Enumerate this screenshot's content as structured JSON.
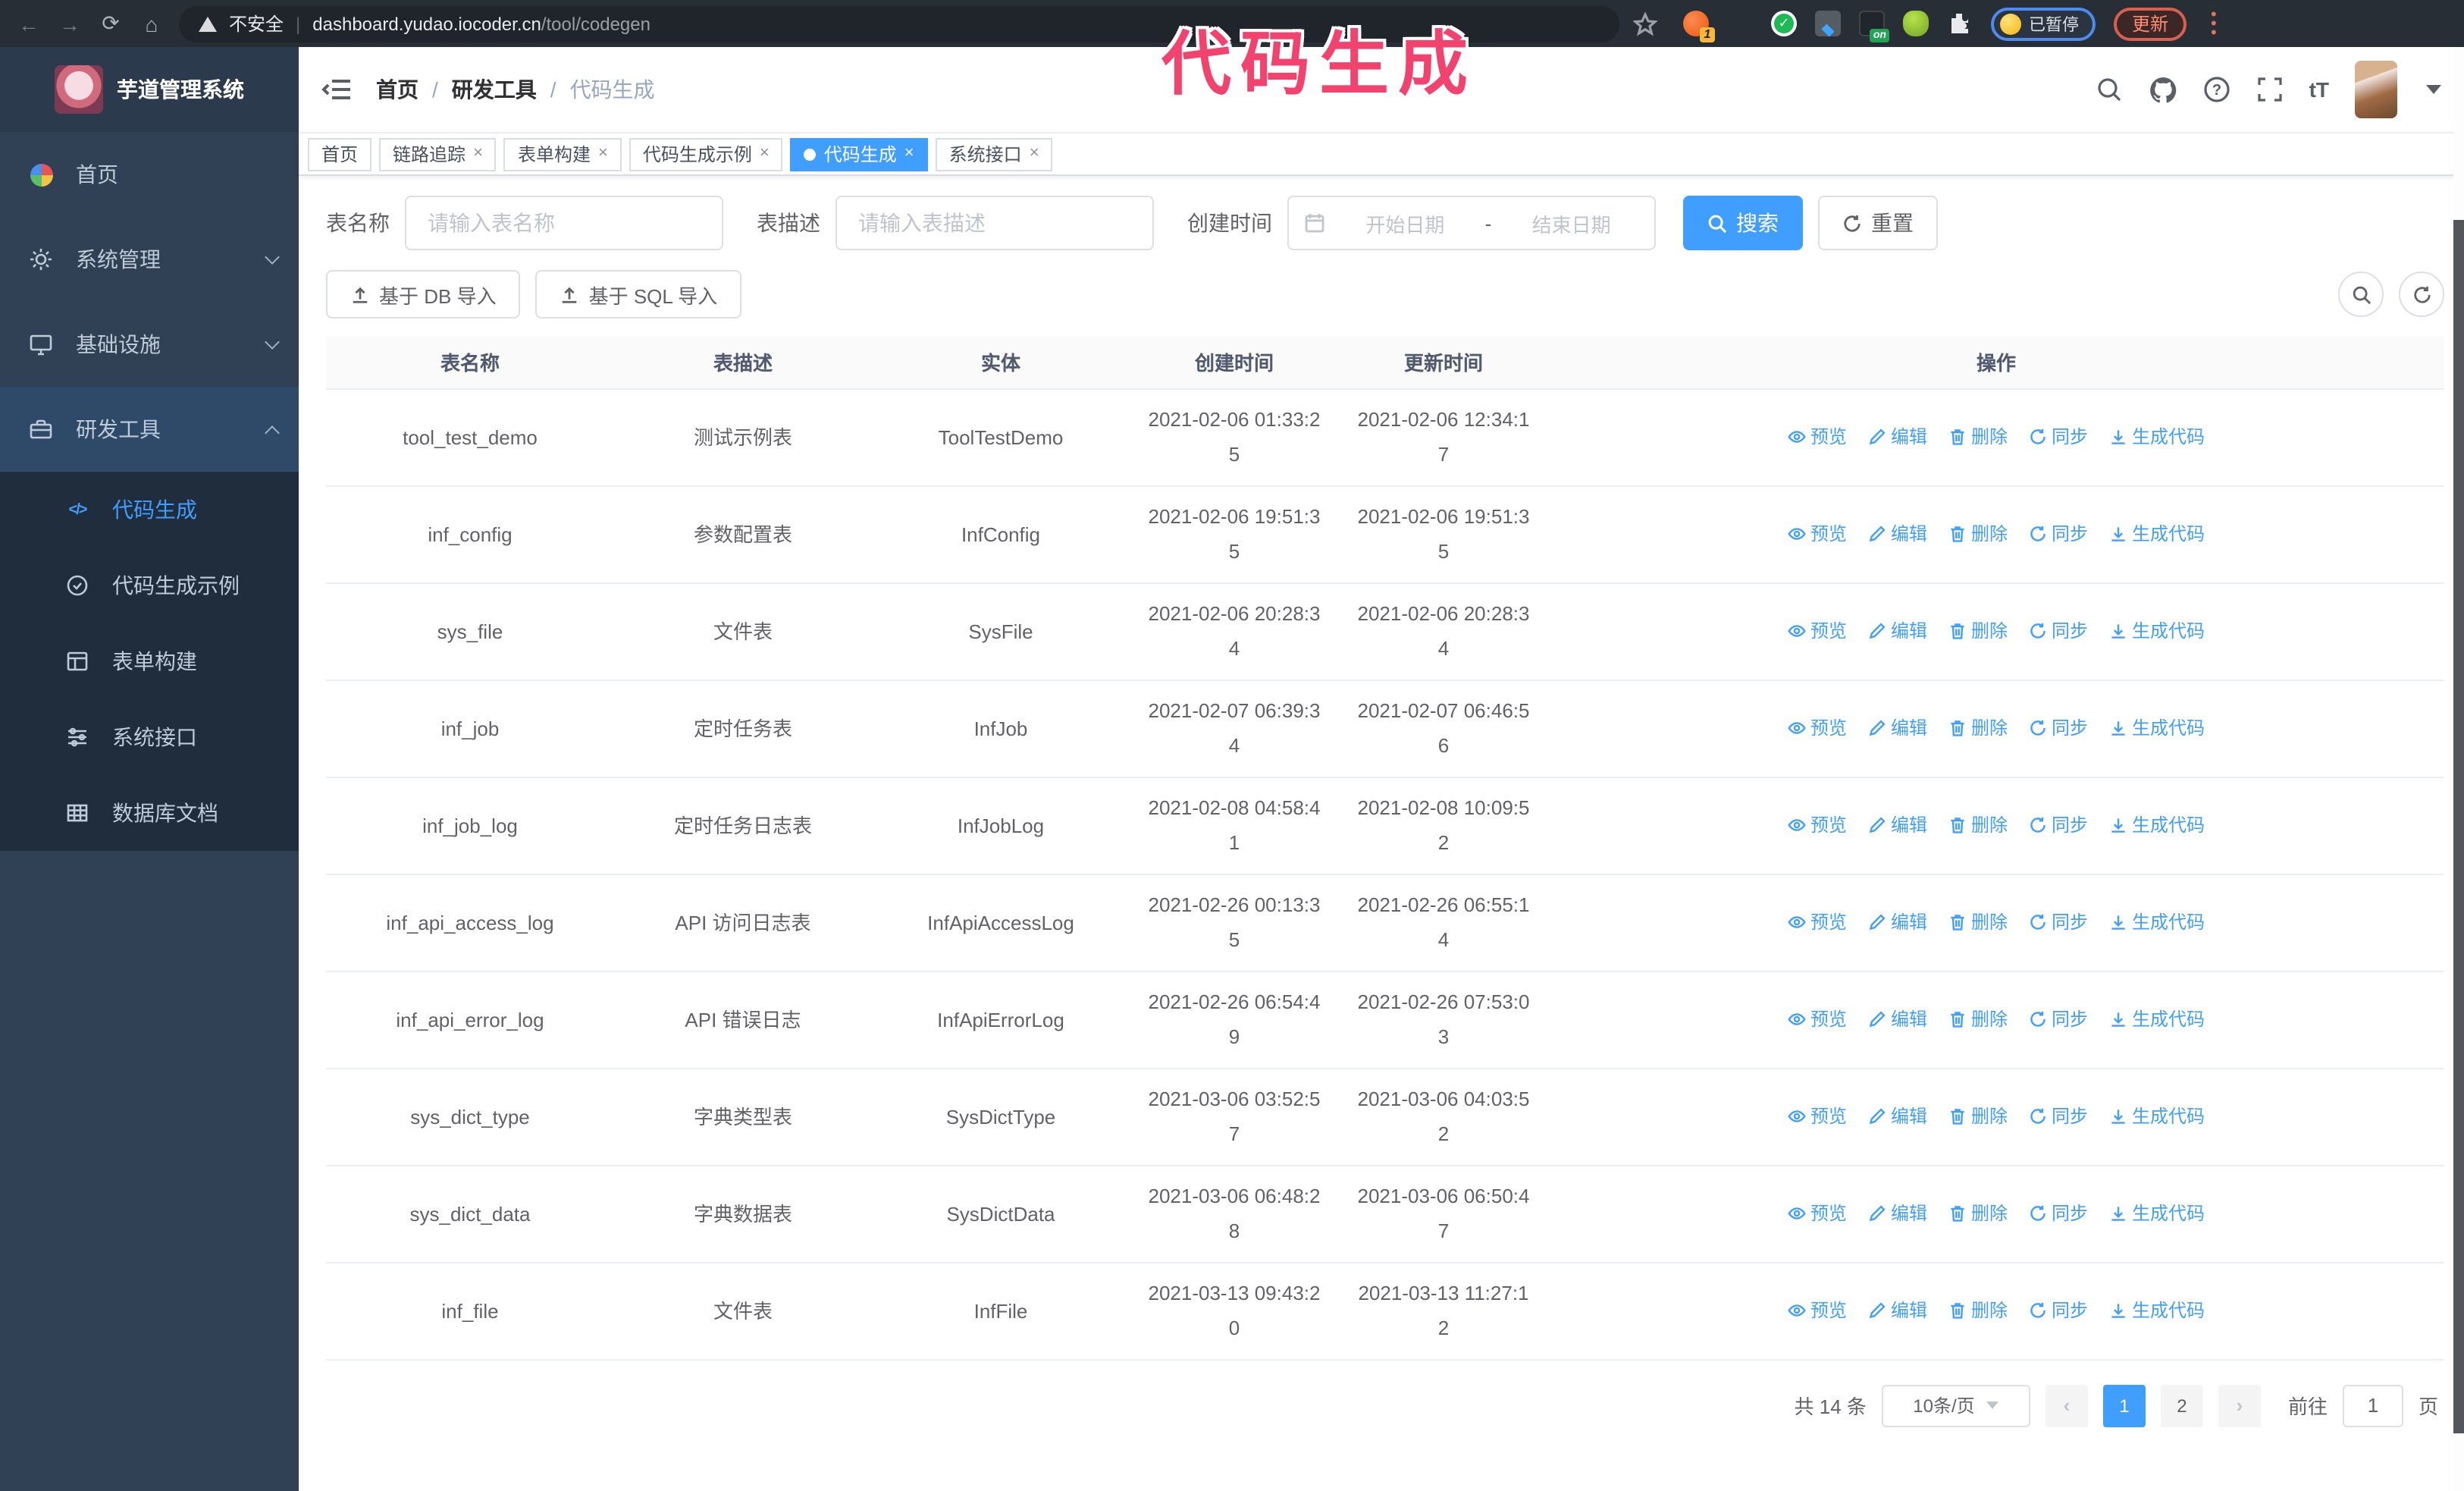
{
  "browser": {
    "security_label": "不安全",
    "url_domain": "dashboard.yudao.iocoder.cn",
    "url_path": "/tool/codegen",
    "extension_badge_1": "1",
    "extension_badge_on": "on",
    "paused_label": "已暂停",
    "update_label": "更新"
  },
  "annotation": {
    "text": "代码生成",
    "color": "#f2426e"
  },
  "sidebar": {
    "title": "芋道管理系统",
    "items": [
      {
        "label": "首页"
      },
      {
        "label": "系统管理"
      },
      {
        "label": "基础设施"
      },
      {
        "label": "研发工具"
      }
    ],
    "submenu": [
      {
        "label": "代码生成"
      },
      {
        "label": "代码生成示例"
      },
      {
        "label": "表单构建"
      },
      {
        "label": "系统接口"
      },
      {
        "label": "数据库文档"
      }
    ]
  },
  "header": {
    "breadcrumb": [
      "首页",
      "研发工具",
      "代码生成"
    ]
  },
  "tabs": [
    {
      "label": "首页"
    },
    {
      "label": "链路追踪"
    },
    {
      "label": "表单构建"
    },
    {
      "label": "代码生成示例"
    },
    {
      "label": "代码生成"
    },
    {
      "label": "系统接口"
    }
  ],
  "filter": {
    "name_label": "表名称",
    "name_placeholder": "请输入表名称",
    "desc_label": "表描述",
    "desc_placeholder": "请输入表描述",
    "time_label": "创建时间",
    "start_placeholder": "开始日期",
    "range_separator": "-",
    "end_placeholder": "结束日期",
    "search_label": "搜索",
    "reset_label": "重置"
  },
  "toolbar": {
    "import_db": "基于 DB 导入",
    "import_sql": "基于 SQL 导入"
  },
  "table": {
    "columns": [
      "表名称",
      "表描述",
      "实体",
      "创建时间",
      "更新时间",
      "操作"
    ],
    "actions": [
      "预览",
      "编辑",
      "删除",
      "同步",
      "生成代码"
    ],
    "rows": [
      {
        "name": "tool_test_demo",
        "desc": "测试示例表",
        "entity": "ToolTestDemo",
        "created": "2021-02-06 01:33:25",
        "updated": "2021-02-06 12:34:17"
      },
      {
        "name": "inf_config",
        "desc": "参数配置表",
        "entity": "InfConfig",
        "created": "2021-02-06 19:51:35",
        "updated": "2021-02-06 19:51:35"
      },
      {
        "name": "sys_file",
        "desc": "文件表",
        "entity": "SysFile",
        "created": "2021-02-06 20:28:34",
        "updated": "2021-02-06 20:28:34"
      },
      {
        "name": "inf_job",
        "desc": "定时任务表",
        "entity": "InfJob",
        "created": "2021-02-07 06:39:34",
        "updated": "2021-02-07 06:46:56"
      },
      {
        "name": "inf_job_log",
        "desc": "定时任务日志表",
        "entity": "InfJobLog",
        "created": "2021-02-08 04:58:41",
        "updated": "2021-02-08 10:09:52"
      },
      {
        "name": "inf_api_access_log",
        "desc": "API 访问日志表",
        "entity": "InfApiAccessLog",
        "created": "2021-02-26 00:13:35",
        "updated": "2021-02-26 06:55:14"
      },
      {
        "name": "inf_api_error_log",
        "desc": "API 错误日志",
        "entity": "InfApiErrorLog",
        "created": "2021-02-26 06:54:49",
        "updated": "2021-02-26 07:53:03"
      },
      {
        "name": "sys_dict_type",
        "desc": "字典类型表",
        "entity": "SysDictType",
        "created": "2021-03-06 03:52:57",
        "updated": "2021-03-06 04:03:52"
      },
      {
        "name": "sys_dict_data",
        "desc": "字典数据表",
        "entity": "SysDictData",
        "created": "2021-03-06 06:48:28",
        "updated": "2021-03-06 06:50:47"
      },
      {
        "name": "inf_file",
        "desc": "文件表",
        "entity": "InfFile",
        "created": "2021-03-13 09:43:20",
        "updated": "2021-03-13 11:27:12"
      }
    ]
  },
  "pagination": {
    "total": "共 14 条",
    "page_size": "10条/页",
    "pages": [
      "1",
      "2"
    ],
    "active_page": "1",
    "goto_label": "前往",
    "goto_value": "1",
    "goto_suffix": "页"
  },
  "colors": {
    "primary": "#409EFF",
    "sidebar_bg": "#304156",
    "submenu_bg": "#1f2d3d",
    "annotation": "#f2426e"
  }
}
